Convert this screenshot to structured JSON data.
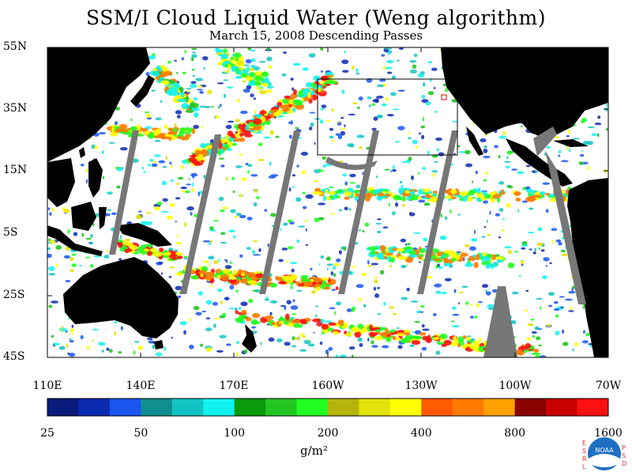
{
  "title": "SSM/I Cloud Liquid Water (Weng algorithm)",
  "subtitle": "March 15, 2008  Descending Passes",
  "lat_labels": [
    "55N",
    "35N",
    "15N",
    "5S",
    "25S",
    "45S"
  ],
  "lon_labels": [
    "110E",
    "140E",
    "170E",
    "160W",
    "130W",
    "100W",
    "70W"
  ],
  "colorbar": {
    "ticks": [
      "25",
      "50",
      "100",
      "200",
      "400",
      "800",
      "1600"
    ],
    "units": "g/m²",
    "colors": [
      "#0a1a7a",
      "#0a2ab0",
      "#1a55ee",
      "#0e8e8e",
      "#10c4c4",
      "#10f2f0",
      "#0a9a0a",
      "#22c622",
      "#22ff22",
      "#b4b40a",
      "#e2e20a",
      "#ffff00",
      "#ff5a00",
      "#ff7a00",
      "#ffa000",
      "#8a0000",
      "#c80000",
      "#ff1010"
    ]
  },
  "colors": {
    "land": "#000000",
    "swath_gap": "#777777",
    "ocean_no_cloud": "#ffffff"
  },
  "logo": {
    "left_letters": [
      "E",
      "S",
      "R",
      "L"
    ],
    "right_letters": [
      "P",
      "S",
      "D"
    ],
    "emblem_text": "NOAA"
  }
}
